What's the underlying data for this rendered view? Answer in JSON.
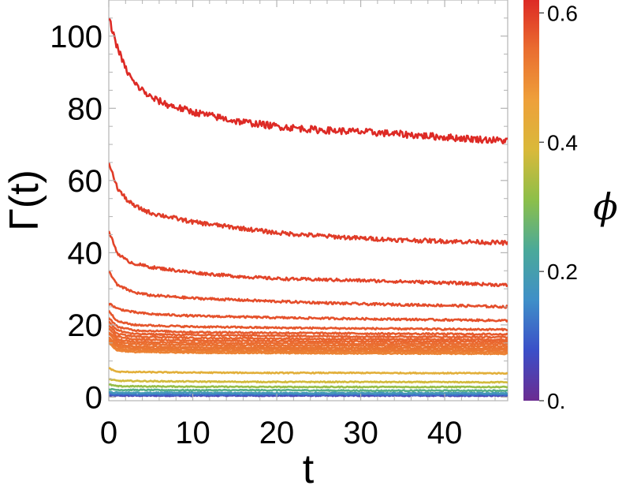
{
  "chart_data": {
    "type": "line",
    "title": "",
    "xlabel": "t",
    "ylabel": "Γ(t)",
    "xlim": [
      0,
      47.5
    ],
    "ylim": [
      -1,
      110
    ],
    "xticks": [
      0,
      10,
      20,
      30,
      40
    ],
    "xtick_labels": [
      "0",
      "10",
      "20",
      "30",
      "40"
    ],
    "yticks": [
      0,
      20,
      40,
      60,
      80,
      100
    ],
    "ytick_labels": [
      "0",
      "20",
      "40",
      "60",
      "80",
      "100"
    ],
    "grid": false,
    "colorbar": {
      "label": "ϕ",
      "ticks": [
        0,
        0.2,
        0.4,
        0.6
      ],
      "tick_labels": [
        "0.",
        "0.2",
        "0.4",
        "0.6"
      ],
      "range": [
        0,
        0.62
      ],
      "colors": [
        "#6b2c91",
        "#3b4fc8",
        "#3f8fc8",
        "#4aa99a",
        "#8cbf4a",
        "#d9b93a",
        "#eea03a",
        "#ea6e30",
        "#dd2a25"
      ]
    },
    "series": [
      {
        "phi": 0.62,
        "values": [
          [
            0,
            105
          ],
          [
            1,
            97
          ],
          [
            2,
            91
          ],
          [
            3,
            87
          ],
          [
            5,
            83
          ],
          [
            7,
            81
          ],
          [
            10,
            79
          ],
          [
            15,
            76.5
          ],
          [
            20,
            75
          ],
          [
            25,
            74
          ],
          [
            30,
            73.5
          ],
          [
            35,
            72.8
          ],
          [
            40,
            72
          ],
          [
            45,
            71.3
          ],
          [
            47.5,
            71
          ]
        ]
      },
      {
        "phi": 0.6,
        "values": [
          [
            0,
            65
          ],
          [
            1,
            58
          ],
          [
            2,
            55
          ],
          [
            3,
            53
          ],
          [
            5,
            51
          ],
          [
            7,
            50
          ],
          [
            10,
            48.5
          ],
          [
            15,
            47
          ],
          [
            20,
            45.5
          ],
          [
            25,
            44.7
          ],
          [
            30,
            44
          ],
          [
            35,
            43.5
          ],
          [
            40,
            43.2
          ],
          [
            45,
            42.9
          ],
          [
            47.5,
            42.7
          ]
        ]
      },
      {
        "phi": 0.59,
        "values": [
          [
            0,
            46
          ],
          [
            1,
            40
          ],
          [
            2,
            38
          ],
          [
            3,
            37
          ],
          [
            5,
            36
          ],
          [
            10,
            34.5
          ],
          [
            15,
            33.5
          ],
          [
            20,
            32.8
          ],
          [
            30,
            32.3
          ],
          [
            40,
            31.7
          ],
          [
            47.5,
            31
          ]
        ]
      },
      {
        "phi": 0.58,
        "values": [
          [
            0,
            35
          ],
          [
            1,
            31
          ],
          [
            2,
            30
          ],
          [
            3,
            29
          ],
          [
            5,
            28.2
          ],
          [
            10,
            27.4
          ],
          [
            20,
            26.5
          ],
          [
            30,
            25.8
          ],
          [
            40,
            25.4
          ],
          [
            47.5,
            25
          ]
        ]
      },
      {
        "phi": 0.575,
        "values": [
          [
            0,
            26
          ],
          [
            1,
            24.5
          ],
          [
            3,
            23.5
          ],
          [
            5,
            23
          ],
          [
            10,
            22.5
          ],
          [
            20,
            22
          ],
          [
            30,
            21.7
          ],
          [
            40,
            21.4
          ],
          [
            47.5,
            21.2
          ]
        ]
      },
      {
        "phi": 0.57,
        "values": [
          [
            0,
            24
          ],
          [
            1,
            21
          ],
          [
            3,
            20
          ],
          [
            10,
            19.5
          ],
          [
            20,
            19.2
          ],
          [
            30,
            19
          ],
          [
            40,
            18.8
          ],
          [
            47.5,
            18.7
          ]
        ]
      },
      {
        "phi": 0.565,
        "values": [
          [
            0,
            22
          ],
          [
            1,
            19.5
          ],
          [
            3,
            18.5
          ],
          [
            10,
            18
          ],
          [
            20,
            17.8
          ],
          [
            30,
            17.6
          ],
          [
            47.5,
            17.4
          ]
        ]
      },
      {
        "phi": 0.56,
        "values": [
          [
            0,
            21
          ],
          [
            1,
            18.5
          ],
          [
            3,
            17.5
          ],
          [
            10,
            17.2
          ],
          [
            20,
            17
          ],
          [
            30,
            16.8
          ],
          [
            47.5,
            16.6
          ]
        ]
      },
      {
        "phi": 0.555,
        "values": [
          [
            0,
            20
          ],
          [
            1,
            17.5
          ],
          [
            3,
            16.8
          ],
          [
            10,
            16.4
          ],
          [
            20,
            16.2
          ],
          [
            30,
            16
          ],
          [
            47.5,
            15.9
          ]
        ]
      },
      {
        "phi": 0.55,
        "values": [
          [
            0,
            19
          ],
          [
            1,
            16.8
          ],
          [
            3,
            16
          ],
          [
            10,
            15.7
          ],
          [
            20,
            15.5
          ],
          [
            30,
            15.4
          ],
          [
            47.5,
            15.3
          ]
        ]
      },
      {
        "phi": 0.545,
        "values": [
          [
            0,
            18
          ],
          [
            1,
            16
          ],
          [
            3,
            15.3
          ],
          [
            10,
            15
          ],
          [
            20,
            14.9
          ],
          [
            30,
            14.8
          ],
          [
            47.5,
            14.7
          ]
        ]
      },
      {
        "phi": 0.54,
        "values": [
          [
            0,
            17.5
          ],
          [
            1,
            15.3
          ],
          [
            3,
            14.7
          ],
          [
            10,
            14.4
          ],
          [
            20,
            14.3
          ],
          [
            30,
            14.2
          ],
          [
            47.5,
            14.1
          ]
        ]
      },
      {
        "phi": 0.535,
        "values": [
          [
            0,
            16.5
          ],
          [
            1,
            14.6
          ],
          [
            3,
            14
          ],
          [
            10,
            13.8
          ],
          [
            20,
            13.7
          ],
          [
            30,
            13.6
          ],
          [
            47.5,
            13.5
          ]
        ]
      },
      {
        "phi": 0.53,
        "values": [
          [
            0,
            16
          ],
          [
            1,
            14
          ],
          [
            3,
            13.5
          ],
          [
            10,
            13.3
          ],
          [
            20,
            13.2
          ],
          [
            30,
            13.1
          ],
          [
            47.5,
            13
          ]
        ]
      },
      {
        "phi": 0.52,
        "values": [
          [
            0,
            15.5
          ],
          [
            1,
            13.4
          ],
          [
            3,
            13
          ],
          [
            10,
            12.8
          ],
          [
            20,
            12.7
          ],
          [
            30,
            12.6
          ],
          [
            47.5,
            12.5
          ]
        ]
      },
      {
        "phi": 0.51,
        "values": [
          [
            0,
            15
          ],
          [
            1,
            12.9
          ],
          [
            3,
            12.5
          ],
          [
            10,
            12.3
          ],
          [
            20,
            12.2
          ],
          [
            30,
            12.1
          ],
          [
            47.5,
            12
          ]
        ]
      },
      {
        "phi": 0.42,
        "values": [
          [
            0,
            8
          ],
          [
            1,
            7
          ],
          [
            5,
            6.9
          ],
          [
            10,
            6.8
          ],
          [
            20,
            6.7
          ],
          [
            30,
            6.7
          ],
          [
            47.5,
            6.6
          ]
        ]
      },
      {
        "phi": 0.38,
        "values": [
          [
            0,
            5
          ],
          [
            1,
            4.5
          ],
          [
            10,
            4.3
          ],
          [
            20,
            4.2
          ],
          [
            30,
            4.2
          ],
          [
            47.5,
            4.1
          ]
        ]
      },
      {
        "phi": 0.32,
        "values": [
          [
            0,
            3.5
          ],
          [
            1,
            3
          ],
          [
            10,
            2.9
          ],
          [
            20,
            2.8
          ],
          [
            30,
            2.8
          ],
          [
            47.5,
            2.8
          ]
        ]
      },
      {
        "phi": 0.25,
        "values": [
          [
            0,
            2.2
          ],
          [
            1,
            2
          ],
          [
            10,
            1.9
          ],
          [
            20,
            1.9
          ],
          [
            30,
            1.8
          ],
          [
            47.5,
            1.8
          ]
        ]
      },
      {
        "phi": 0.18,
        "values": [
          [
            0,
            1.3
          ],
          [
            1,
            1.2
          ],
          [
            10,
            1.2
          ],
          [
            20,
            1.1
          ],
          [
            30,
            1.1
          ],
          [
            47.5,
            1.1
          ]
        ]
      },
      {
        "phi": 0.12,
        "values": [
          [
            0,
            0.8
          ],
          [
            1,
            0.7
          ],
          [
            10,
            0.7
          ],
          [
            20,
            0.7
          ],
          [
            30,
            0.7
          ],
          [
            47.5,
            0.7
          ]
        ]
      },
      {
        "phi": 0.05,
        "values": [
          [
            0,
            0.4
          ],
          [
            1,
            0.4
          ],
          [
            10,
            0.4
          ],
          [
            20,
            0.4
          ],
          [
            30,
            0.4
          ],
          [
            47.5,
            0.4
          ]
        ]
      }
    ]
  }
}
